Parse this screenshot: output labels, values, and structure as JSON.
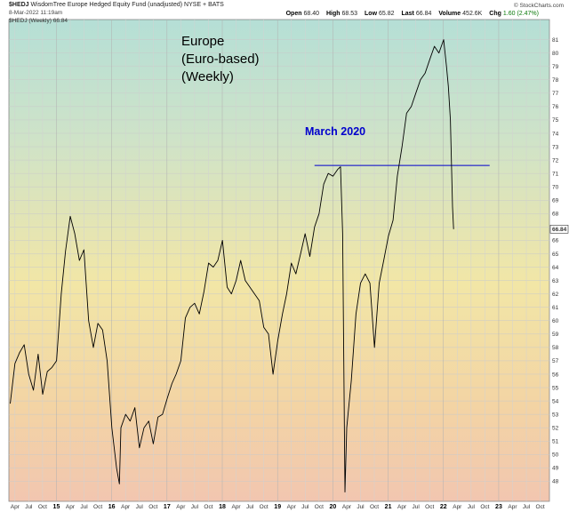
{
  "header": {
    "symbol": "$HEDJ",
    "description": "WisdomTree Europe Hedged Equity Fund (unadjusted)",
    "exchange": "NYSE + BATS",
    "date": "8-Mar-2022 11:19am",
    "legend": "$HEDJ (Weekly) 66.84",
    "brand": "© StockCharts.com",
    "stats": [
      {
        "key": "Open",
        "value": "68.40"
      },
      {
        "key": "High",
        "value": "68.53"
      },
      {
        "key": "Low",
        "value": "65.82"
      },
      {
        "key": "Last",
        "value": "66.84"
      },
      {
        "key": "Volume",
        "value": "452.6K"
      },
      {
        "key": "Chg",
        "value": "1.60 (2.47%)"
      }
    ]
  },
  "annotations": {
    "title": "Europe\n(Euro-based)\n(Weekly)",
    "march": "March 2020"
  },
  "chart_data": {
    "type": "line",
    "title": "Europe (Euro-based) (Weekly)",
    "xlabel": "",
    "ylabel": "",
    "ylim": [
      46.5,
      82.5
    ],
    "grid": true,
    "last_value": "66.84",
    "y_ticks": [
      48,
      49,
      50,
      51,
      52,
      53,
      54,
      55,
      56,
      57,
      58,
      59,
      60,
      61,
      62,
      63,
      64,
      65,
      66,
      67,
      68,
      69,
      70,
      71,
      72,
      73,
      74,
      75,
      76,
      77,
      78,
      79,
      80,
      81
    ],
    "x_axis_labels": [
      "Apr",
      "Jul",
      "Oct",
      "15",
      "Apr",
      "Jul",
      "Oct",
      "16",
      "Apr",
      "Jul",
      "Oct",
      "17",
      "Apr",
      "Jul",
      "Oct",
      "18",
      "Apr",
      "Jul",
      "Oct",
      "19",
      "Apr",
      "Jul",
      "Oct",
      "20",
      "Apr",
      "Jul",
      "Oct",
      "21",
      "Apr",
      "Jul",
      "Oct",
      "22",
      "Apr",
      "Jul",
      "Oct",
      "23",
      "Apr",
      "Jul",
      "Oct"
    ],
    "reference_line": {
      "label": "March 2020",
      "y": 71.6,
      "x_start": "2019-09",
      "x_end": "2022-11"
    },
    "series": [
      {
        "points": [
          [
            "2014-03-01",
            53.8
          ],
          [
            "2014-04-01",
            56.8
          ],
          [
            "2014-05-01",
            57.6
          ],
          [
            "2014-06-01",
            58.2
          ],
          [
            "2014-07-01",
            56.0
          ],
          [
            "2014-08-01",
            54.8
          ],
          [
            "2014-09-01",
            57.5
          ],
          [
            "2014-10-01",
            54.5
          ],
          [
            "2014-11-01",
            56.2
          ],
          [
            "2014-12-01",
            56.5
          ],
          [
            "2015-01-01",
            57.0
          ],
          [
            "2015-02-01",
            62.0
          ],
          [
            "2015-03-01",
            65.2
          ],
          [
            "2015-04-01",
            67.8
          ],
          [
            "2015-05-01",
            66.5
          ],
          [
            "2015-06-01",
            64.5
          ],
          [
            "2015-07-01",
            65.3
          ],
          [
            "2015-08-01",
            60.0
          ],
          [
            "2015-09-01",
            58.0
          ],
          [
            "2015-10-01",
            59.8
          ],
          [
            "2015-11-01",
            59.3
          ],
          [
            "2015-12-01",
            57.0
          ],
          [
            "2016-01-01",
            52.0
          ],
          [
            "2016-02-01",
            49.0
          ],
          [
            "2016-02-20",
            47.8
          ],
          [
            "2016-03-01",
            52.0
          ],
          [
            "2016-04-01",
            53.0
          ],
          [
            "2016-05-01",
            52.5
          ],
          [
            "2016-06-01",
            53.5
          ],
          [
            "2016-07-01",
            50.5
          ],
          [
            "2016-08-01",
            52.0
          ],
          [
            "2016-09-01",
            52.5
          ],
          [
            "2016-10-01",
            50.8
          ],
          [
            "2016-11-01",
            52.8
          ],
          [
            "2016-12-01",
            53.0
          ],
          [
            "2017-01-01",
            54.2
          ],
          [
            "2017-02-01",
            55.3
          ],
          [
            "2017-03-01",
            56.0
          ],
          [
            "2017-04-01",
            57.0
          ],
          [
            "2017-05-01",
            60.2
          ],
          [
            "2017-06-01",
            61.0
          ],
          [
            "2017-07-01",
            61.3
          ],
          [
            "2017-08-01",
            60.5
          ],
          [
            "2017-09-01",
            62.2
          ],
          [
            "2017-10-01",
            64.3
          ],
          [
            "2017-11-01",
            64.0
          ],
          [
            "2017-12-01",
            64.5
          ],
          [
            "2018-01-01",
            66.0
          ],
          [
            "2018-02-01",
            62.5
          ],
          [
            "2018-03-01",
            62.0
          ],
          [
            "2018-04-01",
            63.0
          ],
          [
            "2018-05-01",
            64.5
          ],
          [
            "2018-06-01",
            63.0
          ],
          [
            "2018-07-01",
            62.5
          ],
          [
            "2018-08-01",
            62.0
          ],
          [
            "2018-09-01",
            61.5
          ],
          [
            "2018-10-01",
            59.5
          ],
          [
            "2018-11-01",
            59.0
          ],
          [
            "2018-12-01",
            56.0
          ],
          [
            "2019-01-01",
            58.5
          ],
          [
            "2019-02-01",
            60.5
          ],
          [
            "2019-03-01",
            62.0
          ],
          [
            "2019-04-01",
            64.3
          ],
          [
            "2019-05-01",
            63.5
          ],
          [
            "2019-06-01",
            65.0
          ],
          [
            "2019-07-01",
            66.5
          ],
          [
            "2019-08-01",
            64.8
          ],
          [
            "2019-09-01",
            67.0
          ],
          [
            "2019-10-01",
            68.0
          ],
          [
            "2019-11-01",
            70.2
          ],
          [
            "2019-12-01",
            71.0
          ],
          [
            "2020-01-01",
            70.8
          ],
          [
            "2020-02-01",
            71.3
          ],
          [
            "2020-02-20",
            71.5
          ],
          [
            "2020-03-05",
            66.5
          ],
          [
            "2020-03-20",
            47.2
          ],
          [
            "2020-04-01",
            52.0
          ],
          [
            "2020-05-01",
            55.5
          ],
          [
            "2020-06-01",
            60.5
          ],
          [
            "2020-07-01",
            62.8
          ],
          [
            "2020-08-01",
            63.5
          ],
          [
            "2020-09-01",
            62.8
          ],
          [
            "2020-10-01",
            58.0
          ],
          [
            "2020-11-01",
            62.8
          ],
          [
            "2020-12-01",
            64.5
          ],
          [
            "2021-01-01",
            66.3
          ],
          [
            "2021-02-01",
            67.5
          ],
          [
            "2021-03-01",
            70.8
          ],
          [
            "2021-04-01",
            73.0
          ],
          [
            "2021-05-01",
            75.5
          ],
          [
            "2021-06-01",
            76.0
          ],
          [
            "2021-07-01",
            77.0
          ],
          [
            "2021-08-01",
            78.0
          ],
          [
            "2021-09-01",
            78.5
          ],
          [
            "2021-10-01",
            79.5
          ],
          [
            "2021-11-01",
            80.5
          ],
          [
            "2021-12-01",
            80.0
          ],
          [
            "2022-01-01",
            81.0
          ],
          [
            "2022-01-20",
            79.0
          ],
          [
            "2022-02-01",
            77.5
          ],
          [
            "2022-02-15",
            75.0
          ],
          [
            "2022-03-01",
            68.5
          ],
          [
            "2022-03-08",
            66.84
          ]
        ]
      }
    ]
  }
}
